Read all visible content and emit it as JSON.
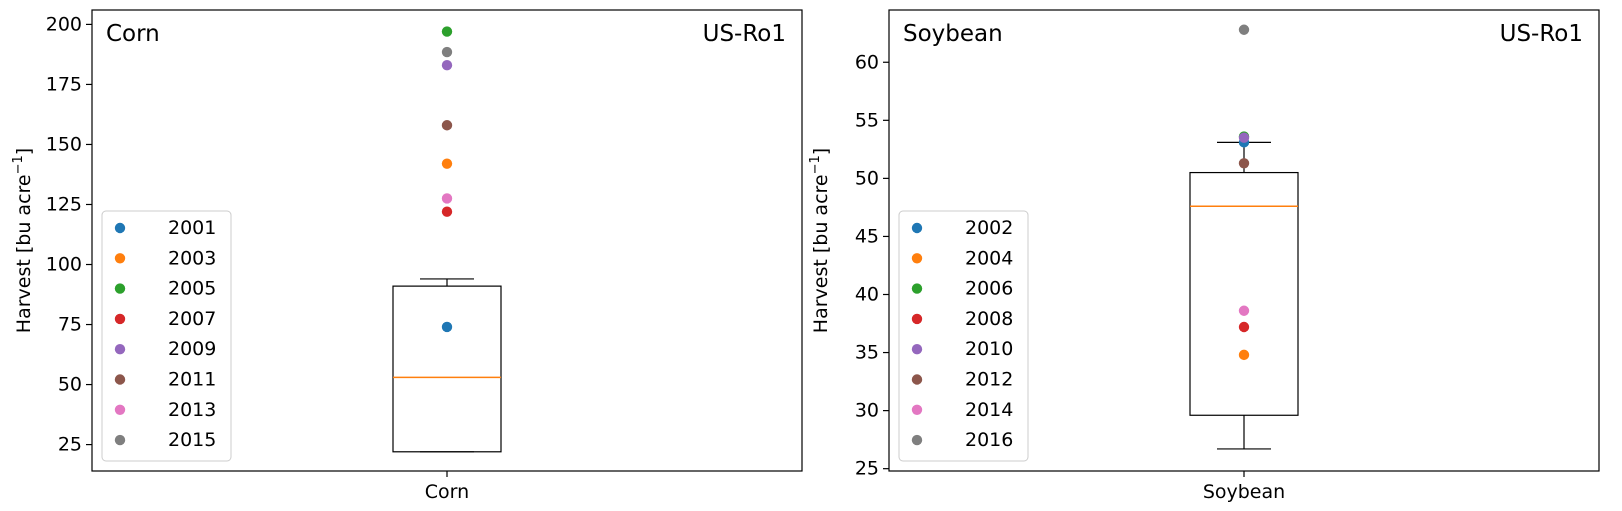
{
  "chart_data": [
    {
      "type": "box",
      "panel_label": "Corn",
      "site_label": "US-Ro1",
      "ylabel_main": "Harvest [bu acre",
      "ylabel_sup": "−1",
      "ylabel_close": "]",
      "xtick_label": "Corn",
      "ylim": [
        14,
        206
      ],
      "yticks": [
        {
          "value": 25,
          "label": "25"
        },
        {
          "value": 50,
          "label": "50"
        },
        {
          "value": 75,
          "label": "75"
        },
        {
          "value": 100,
          "label": "100"
        },
        {
          "value": 125,
          "label": "125"
        },
        {
          "value": 150,
          "label": "150"
        },
        {
          "value": 175,
          "label": "175"
        },
        {
          "value": 200,
          "label": "200"
        }
      ],
      "box": {
        "whisker_low": 22,
        "q1": 22,
        "median": 53,
        "q3": 91,
        "whisker_high": 94
      },
      "points": [
        {
          "label": "2001",
          "value": 74,
          "color": "#1f77b4"
        },
        {
          "label": "2003",
          "value": 142,
          "color": "#ff7f0e"
        },
        {
          "label": "2005",
          "value": 197,
          "color": "#2ca02c"
        },
        {
          "label": "2007",
          "value": 122,
          "color": "#d62728"
        },
        {
          "label": "2009",
          "value": 183,
          "color": "#9467bd"
        },
        {
          "label": "2011",
          "value": 158,
          "color": "#8c564b"
        },
        {
          "label": "2013",
          "value": 127.5,
          "color": "#e377c2"
        },
        {
          "label": "2015",
          "value": 188.5,
          "color": "#7f7f7f"
        }
      ],
      "legend_position": "lower-left",
      "grid": false
    },
    {
      "type": "box",
      "panel_label": "Soybean",
      "site_label": "US-Ro1",
      "ylabel_main": "Harvest [bu acre",
      "ylabel_sup": "−1",
      "ylabel_close": "]",
      "xtick_label": "Soybean",
      "ylim": [
        24.8,
        64.5
      ],
      "yticks": [
        {
          "value": 25,
          "label": "25"
        },
        {
          "value": 30,
          "label": "30"
        },
        {
          "value": 35,
          "label": "35"
        },
        {
          "value": 40,
          "label": "40"
        },
        {
          "value": 45,
          "label": "45"
        },
        {
          "value": 50,
          "label": "50"
        },
        {
          "value": 55,
          "label": "55"
        },
        {
          "value": 60,
          "label": "60"
        }
      ],
      "box": {
        "whisker_low": 26.7,
        "q1": 29.6,
        "median": 47.6,
        "q3": 50.5,
        "whisker_high": 53.1
      },
      "points": [
        {
          "label": "2002",
          "value": 53.1,
          "color": "#1f77b4"
        },
        {
          "label": "2004",
          "value": 34.8,
          "color": "#ff7f0e"
        },
        {
          "label": "2006",
          "value": 53.6,
          "color": "#2ca02c"
        },
        {
          "label": "2008",
          "value": 37.2,
          "color": "#d62728"
        },
        {
          "label": "2010",
          "value": 53.5,
          "color": "#9467bd"
        },
        {
          "label": "2012",
          "value": 51.3,
          "color": "#8c564b"
        },
        {
          "label": "2014",
          "value": 38.6,
          "color": "#e377c2"
        },
        {
          "label": "2016",
          "value": 62.8,
          "color": "#7f7f7f"
        }
      ],
      "legend_position": "lower-left",
      "grid": false
    }
  ],
  "style": {
    "median_color": "#ff7f0e",
    "box_color": "#000000"
  }
}
